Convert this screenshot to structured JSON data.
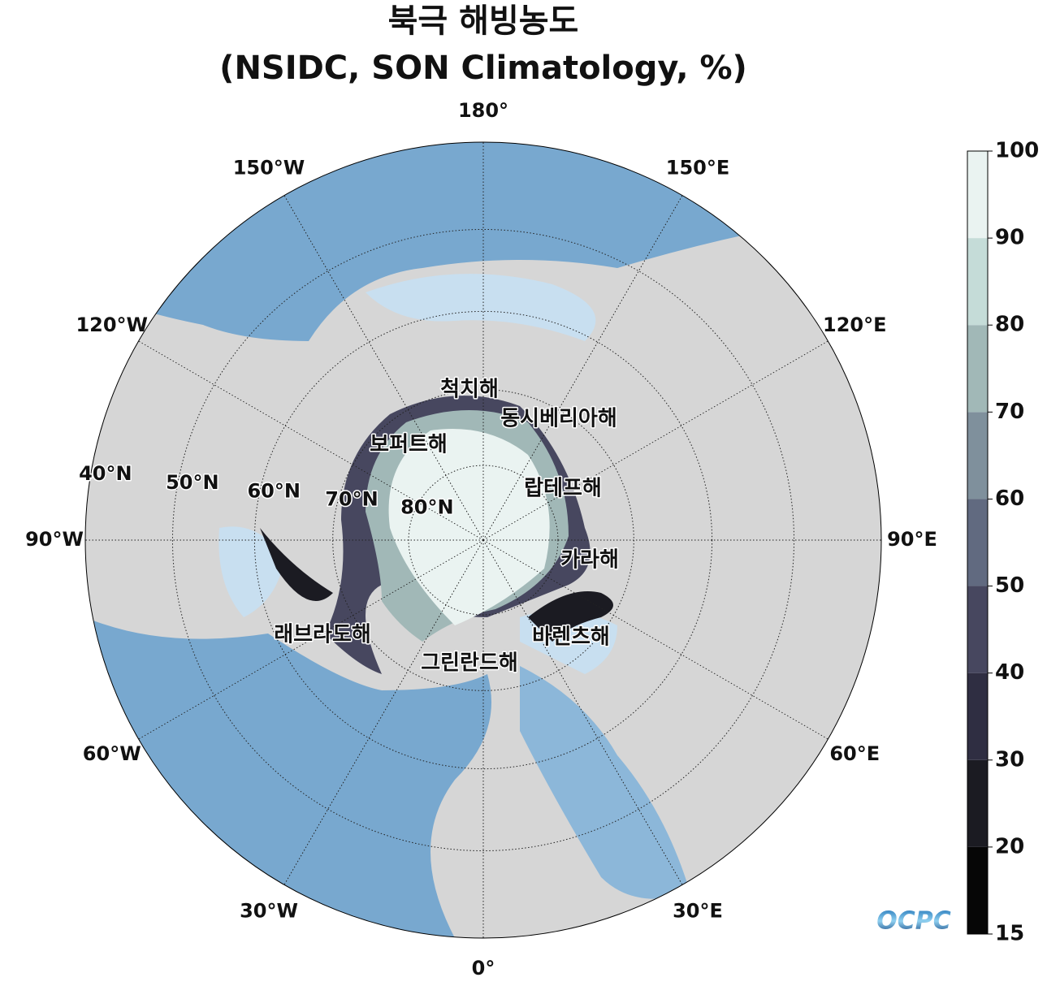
{
  "title": "북극 해빙농도",
  "subtitle": "(NSIDC, SON Climatology, %)",
  "longitude_labels": [
    {
      "value": 180,
      "label": "180°"
    },
    {
      "value": 150,
      "label": "150°E"
    },
    {
      "value": 120,
      "label": "120°E"
    },
    {
      "value": 90,
      "label": "90°E"
    },
    {
      "value": 60,
      "label": "60°E"
    },
    {
      "value": 30,
      "label": "30°E"
    },
    {
      "value": 0,
      "label": "0°"
    },
    {
      "value": -30,
      "label": "30°W"
    },
    {
      "value": -60,
      "label": "60°W"
    },
    {
      "value": -90,
      "label": "90°W"
    },
    {
      "value": -120,
      "label": "120°W"
    },
    {
      "value": -150,
      "label": "150°W"
    }
  ],
  "latitude_labels": [
    {
      "value": 40,
      "label": "40°N"
    },
    {
      "value": 50,
      "label": "50°N"
    },
    {
      "value": 60,
      "label": "60°N"
    },
    {
      "value": 70,
      "label": "70°N"
    },
    {
      "value": 80,
      "label": "80°N"
    }
  ],
  "sea_labels": [
    "척치해",
    "동시베리아해",
    "보퍼트해",
    "랍테프해",
    "카라해",
    "바렌츠해",
    "그린란드해",
    "래브라도해"
  ],
  "colorbar": {
    "ticks": [
      15,
      20,
      30,
      40,
      50,
      60,
      70,
      80,
      90,
      100
    ],
    "colors": [
      "#060606",
      "#1b1b22",
      "#2f2e42",
      "#47475f",
      "#616a80",
      "#7f909c",
      "#a1b8b7",
      "#c5dcd8",
      "#eaf3f1"
    ]
  },
  "logo": "OCPC"
}
